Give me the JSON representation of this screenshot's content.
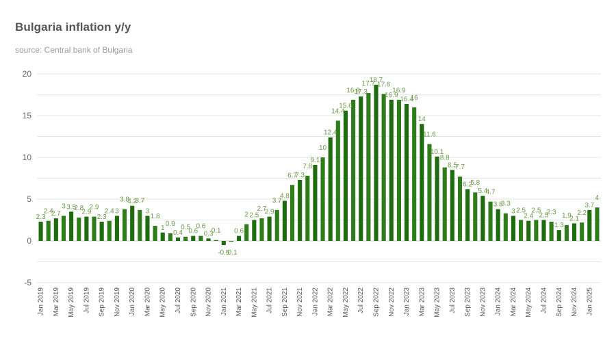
{
  "header": {
    "title": "Bulgaria inflation y/y",
    "subtitle": "source: Central bank of Bulgaria"
  },
  "colors": {
    "bar": "#2e7d1a",
    "bar_dark": "#1f6b0f",
    "data_label": "#6a9a4a",
    "grid": "#e6e6e6",
    "axis_text": "#666666"
  },
  "chart_data": {
    "type": "bar",
    "title": "Bulgaria inflation y/y",
    "subtitle": "source: Central bank of Bulgaria",
    "xlabel": "",
    "ylabel": "",
    "ylim": [
      -5,
      20
    ],
    "yticks": [
      -5,
      0,
      5,
      10,
      15,
      20
    ],
    "grid": true,
    "legend": null,
    "categories": [
      "Jan 2019",
      "Feb 2019",
      "Mar 2019",
      "Apr 2019",
      "May 2019",
      "Jun 2019",
      "Jul 2019",
      "Aug 2019",
      "Sep 2019",
      "Oct 2019",
      "Nov 2019",
      "Dec 2019",
      "Jan 2020",
      "Feb 2020",
      "Mar 2020",
      "Apr 2020",
      "May 2020",
      "Jun 2020",
      "Jul 2020",
      "Aug 2020",
      "Sep 2020",
      "Oct 2020",
      "Nov 2020",
      "Dec 2020",
      "Jan 2021",
      "Feb 2021",
      "Mar 2021",
      "Apr 2021",
      "May 2021",
      "Jun 2021",
      "Jul 2021",
      "Aug 2021",
      "Sep 2021",
      "Oct 2021",
      "Nov 2021",
      "Dec 2021",
      "Jan 2022",
      "Feb 2022",
      "Mar 2022",
      "Apr 2022",
      "May 2022",
      "Jun 2022",
      "Jul 2022",
      "Aug 2022",
      "Sep 2022",
      "Oct 2022",
      "Nov 2022",
      "Dec 2022",
      "Jan 2023",
      "Feb 2023",
      "Mar 2023",
      "Apr 2023",
      "May 2023",
      "Jun 2023",
      "Jul 2023",
      "Aug 2023",
      "Sep 2023",
      "Oct 2023",
      "Nov 2023",
      "Dec 2023",
      "Jan 2024",
      "Feb 2024",
      "Mar 2024",
      "Apr 2024",
      "May 2024",
      "Jun 2024",
      "Jul 2024",
      "Aug 2024",
      "Sep 2024",
      "Oct 2024",
      "Nov 2024",
      "Dec 2024",
      "Jan 2025",
      "Feb 2025"
    ],
    "values": [
      2.3,
      2.4,
      2.7,
      3.0,
      3.5,
      2.8,
      2.9,
      2.9,
      2.3,
      2.4,
      3.0,
      3.8,
      4.2,
      3.7,
      3.0,
      1.8,
      1.0,
      0.9,
      0.4,
      0.5,
      0.6,
      0.6,
      0.3,
      0.1,
      -0.5,
      -0.1,
      0.6,
      2.0,
      2.5,
      2.7,
      2.9,
      3.7,
      4.8,
      6.7,
      7.3,
      7.8,
      9.1,
      10.0,
      12.4,
      14.4,
      15.6,
      16.9,
      17.3,
      17.7,
      18.7,
      17.6,
      16.9,
      16.9,
      16.4,
      16.0,
      14.0,
      11.6,
      10.1,
      8.8,
      8.5,
      7.7,
      6.2,
      5.8,
      5.4,
      4.7,
      3.8,
      3.3,
      3.0,
      2.5,
      2.4,
      2.5,
      2.5,
      2.3,
      1.3,
      1.9,
      2.1,
      2.2,
      3.7,
      4.0
    ],
    "x_tick_labels_shown": [
      "Jan 2019",
      "Mar 2019",
      "May 2019",
      "Jul 2019",
      "Sep 2019",
      "Nov 2019",
      "Jan 2020",
      "Mar 2020",
      "May 2020",
      "Jul 2020",
      "Sep 2020",
      "Nov 2020",
      "Jan 2021",
      "Mar 2021",
      "May 2021",
      "Jul 2021",
      "Sep 2021",
      "Nov 2021",
      "Jan 2022",
      "Mar 2022",
      "May 2022",
      "Jul 2022",
      "Sep 2022",
      "Nov 2022",
      "Jan 2023",
      "Mar 2023",
      "May 2023",
      "Jul 2023",
      "Sep 2023",
      "Nov 2023",
      "Jan 2024",
      "Mar 2024",
      "May 2024",
      "Jul 2024",
      "Sep 2024",
      "Nov 2024",
      "Jan 2025"
    ]
  }
}
